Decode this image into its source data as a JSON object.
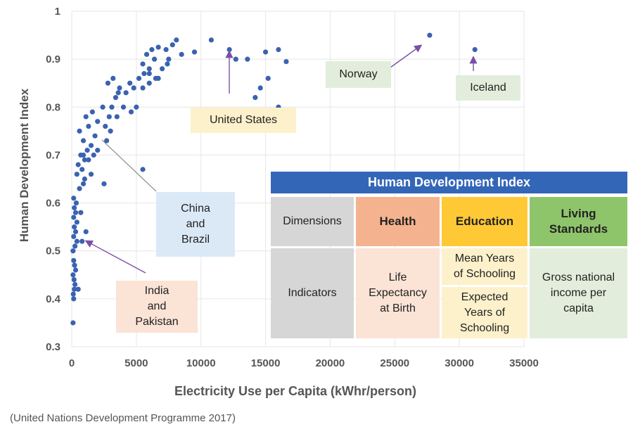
{
  "chart_data": {
    "type": "scatter",
    "xlabel": "Electricity Use per Capita (kWhr/person)",
    "ylabel": "Human Development Index",
    "xlim": [
      0,
      35000
    ],
    "ylim": [
      0.3,
      1.0
    ],
    "xticks": [
      "0",
      "5000",
      "10000",
      "15000",
      "20000",
      "25000",
      "30000",
      "35000"
    ],
    "yticks": [
      "0.3",
      "0.4",
      "0.5",
      "0.6",
      "0.7",
      "0.8",
      "0.9",
      "1"
    ],
    "grid": true,
    "point_color": "#3a62b0",
    "points": [
      [
        100,
        0.35
      ],
      [
        150,
        0.4
      ],
      [
        120,
        0.41
      ],
      [
        200,
        0.42
      ],
      [
        250,
        0.43
      ],
      [
        180,
        0.44
      ],
      [
        100,
        0.45
      ],
      [
        300,
        0.46
      ],
      [
        220,
        0.47
      ],
      [
        150,
        0.48
      ],
      [
        100,
        0.5
      ],
      [
        250,
        0.51
      ],
      [
        400,
        0.52
      ],
      [
        150,
        0.53
      ],
      [
        300,
        0.54
      ],
      [
        200,
        0.55
      ],
      [
        400,
        0.56
      ],
      [
        150,
        0.57
      ],
      [
        300,
        0.58
      ],
      [
        200,
        0.59
      ],
      [
        350,
        0.6
      ],
      [
        150,
        0.61
      ],
      [
        500,
        0.42
      ],
      [
        800,
        0.52
      ],
      [
        1100,
        0.54
      ],
      [
        700,
        0.58
      ],
      [
        600,
        0.63
      ],
      [
        900,
        0.64
      ],
      [
        400,
        0.66
      ],
      [
        800,
        0.67
      ],
      [
        500,
        0.68
      ],
      [
        1000,
        0.69
      ],
      [
        700,
        0.7
      ],
      [
        1200,
        0.71
      ],
      [
        1500,
        0.72
      ],
      [
        900,
        0.73
      ],
      [
        1800,
        0.74
      ],
      [
        600,
        0.75
      ],
      [
        1300,
        0.76
      ],
      [
        2000,
        0.77
      ],
      [
        1100,
        0.78
      ],
      [
        1600,
        0.79
      ],
      [
        2400,
        0.8
      ],
      [
        900,
        0.7
      ],
      [
        1300,
        0.69
      ],
      [
        1700,
        0.7
      ],
      [
        2000,
        0.71
      ],
      [
        1500,
        0.66
      ],
      [
        2500,
        0.64
      ],
      [
        1000,
        0.65
      ],
      [
        2600,
        0.76
      ],
      [
        2900,
        0.78
      ],
      [
        3100,
        0.8
      ],
      [
        3400,
        0.82
      ],
      [
        3700,
        0.84
      ],
      [
        2800,
        0.85
      ],
      [
        3200,
        0.86
      ],
      [
        3600,
        0.83
      ],
      [
        4000,
        0.8
      ],
      [
        3500,
        0.78
      ],
      [
        3000,
        0.75
      ],
      [
        2700,
        0.73
      ],
      [
        4200,
        0.83
      ],
      [
        4500,
        0.85
      ],
      [
        4800,
        0.84
      ],
      [
        5200,
        0.86
      ],
      [
        5600,
        0.87
      ],
      [
        6000,
        0.88
      ],
      [
        6400,
        0.9
      ],
      [
        5800,
        0.91
      ],
      [
        6200,
        0.92
      ],
      [
        6700,
        0.925
      ],
      [
        7300,
        0.92
      ],
      [
        7800,
        0.93
      ],
      [
        8100,
        0.94
      ],
      [
        7500,
        0.9
      ],
      [
        7000,
        0.88
      ],
      [
        6500,
        0.86
      ],
      [
        6000,
        0.85
      ],
      [
        5500,
        0.84
      ],
      [
        5000,
        0.8
      ],
      [
        4600,
        0.79
      ],
      [
        5500,
        0.67
      ],
      [
        8500,
        0.91
      ],
      [
        9500,
        0.915
      ],
      [
        10800,
        0.94
      ],
      [
        12200,
        0.92
      ],
      [
        12700,
        0.9
      ],
      [
        13600,
        0.9
      ],
      [
        15000,
        0.915
      ],
      [
        16000,
        0.92
      ],
      [
        16600,
        0.895
      ],
      [
        15200,
        0.86
      ],
      [
        14600,
        0.84
      ],
      [
        14200,
        0.82
      ],
      [
        16000,
        0.8
      ],
      [
        7400,
        0.89
      ],
      [
        6700,
        0.86
      ],
      [
        6000,
        0.87
      ],
      [
        5500,
        0.89
      ],
      [
        27700,
        0.95
      ],
      [
        31200,
        0.92
      ]
    ],
    "annotations": [
      {
        "label": "United States"
      },
      {
        "label": "Norway"
      },
      {
        "label": "Iceland"
      },
      {
        "label": "China\nand\nBrazil"
      },
      {
        "label": "India\nand\nPakistan"
      }
    ]
  },
  "table": {
    "title": "Human Development Index",
    "dimensions_label": "Dimensions",
    "indicators_label": "Indicators",
    "health": "Health",
    "education": "Education",
    "living": "Living\nStandards",
    "life": "Life\nExpectancy\nat Birth",
    "mean_years": "Mean Years\nof Schooling",
    "expected_years": "Expected\nYears of\nSchooling",
    "gni": "Gross national\nincome per\ncapita"
  },
  "source": "(United Nations Development Programme 2017)"
}
